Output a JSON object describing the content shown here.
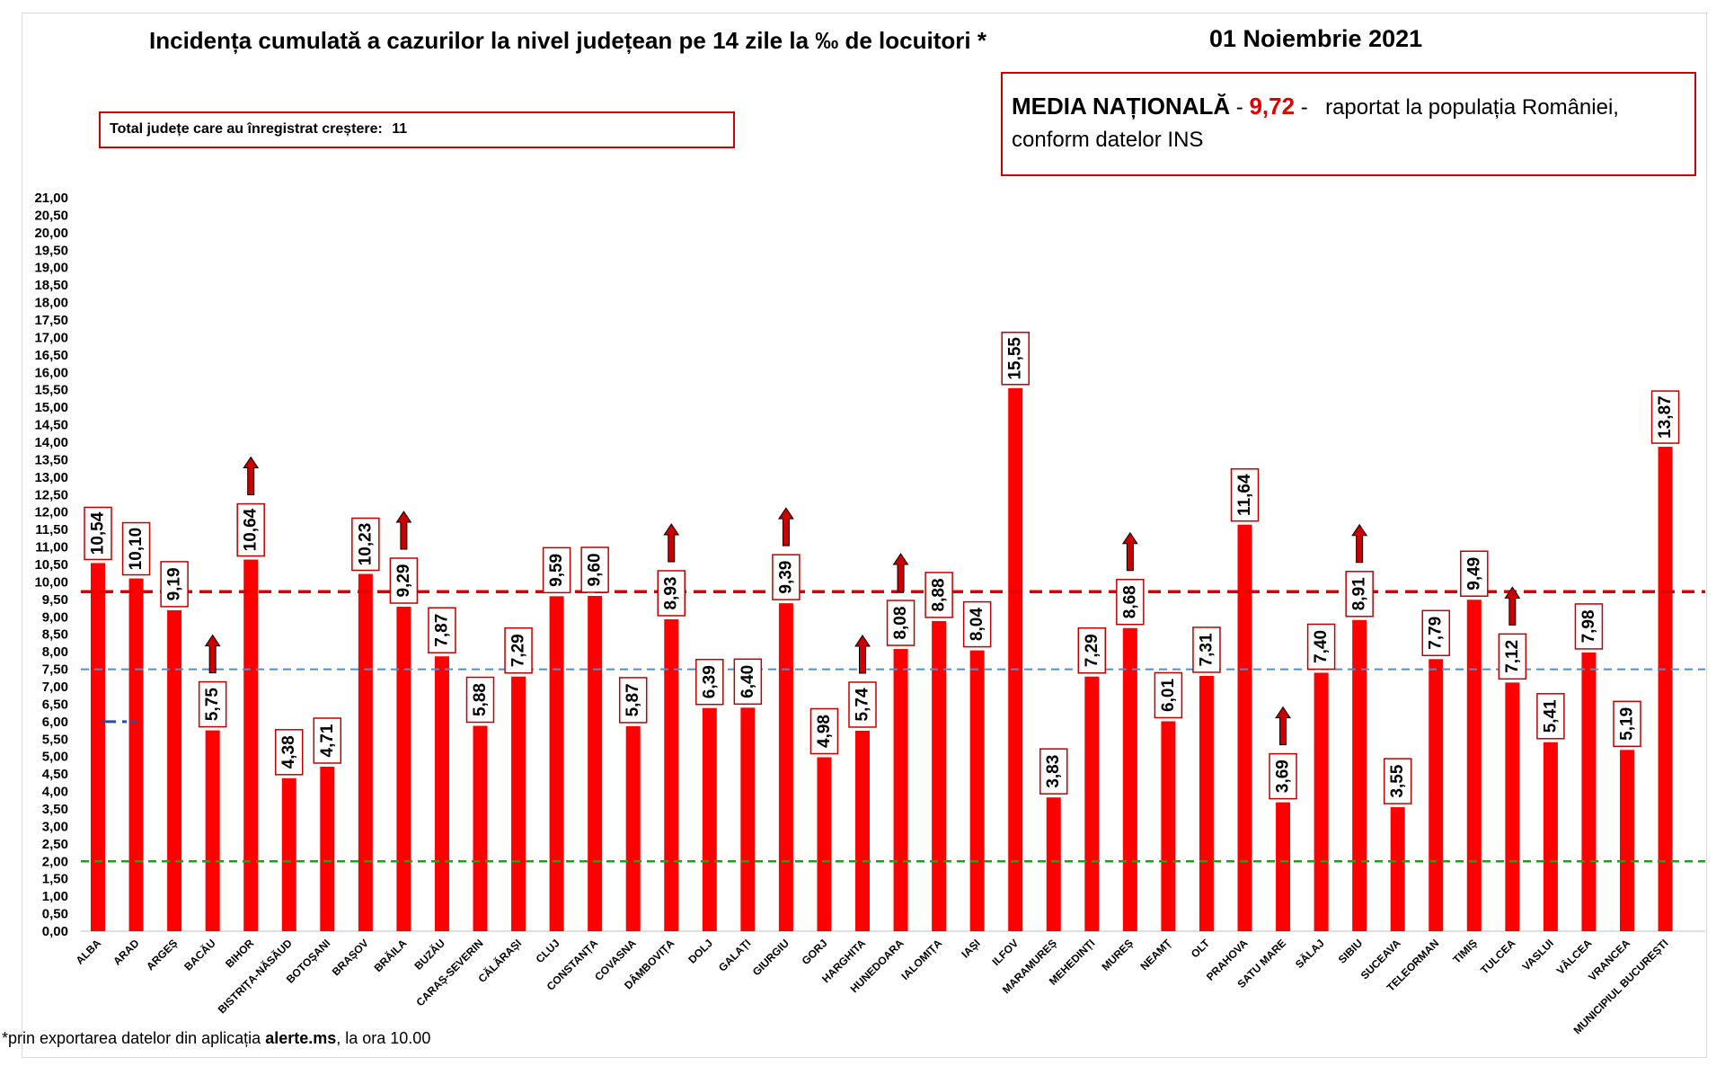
{
  "title": "Incidența cumulată a cazurilor la nivel județean pe 14 zile la ‰ de locuitori *",
  "date": "01 Noiembrie 2021",
  "total_box": {
    "label": "Total județe care au înregistrat creștere:",
    "value": "11"
  },
  "media_box": {
    "label": "MEDIA NAȚIONALĂ",
    "sep1": " - ",
    "value": "9,72",
    "sep2": " - ",
    "rest": "raportat la populația României, conform datelor INS"
  },
  "footnote": {
    "prefix": "*prin exportarea datelor din aplicația ",
    "source": "alerte.ms",
    "suffix": ", la ora 10.00"
  },
  "colors": {
    "bar": "#ff0000",
    "label_border": "#c00000",
    "arrow": "#cc0000",
    "line_national": "#e00000",
    "line_blue": "#4a90d9",
    "line_green": "#17a21a",
    "marker_blue": "#1f4fb0"
  },
  "chart_data": {
    "type": "bar",
    "ylim": [
      0,
      21
    ],
    "ytick_step": 0.5,
    "ytick_labels": [
      "0,00",
      "0,50",
      "1,00",
      "1,50",
      "2,00",
      "2,50",
      "3,00",
      "3,50",
      "4,00",
      "4,50",
      "5,00",
      "5,50",
      "6,00",
      "6,50",
      "7,00",
      "7,50",
      "8,00",
      "8,50",
      "9,00",
      "9,50",
      "10,00",
      "10,50",
      "11,00",
      "11,50",
      "12,00",
      "12,50",
      "13,00",
      "13,50",
      "14,00",
      "14,50",
      "15,00",
      "15,50",
      "16,00",
      "16,50",
      "17,00",
      "17,50",
      "18,00",
      "18,50",
      "19,00",
      "19,50",
      "20,00",
      "20,50",
      "21,00"
    ],
    "reference_lines": [
      {
        "value": 9.72,
        "style": "dashed",
        "color": "#e00000"
      },
      {
        "value": 7.5,
        "style": "dashed",
        "color": "#4a90d9"
      },
      {
        "value": 2.0,
        "style": "dashed",
        "color": "#17a21a"
      }
    ],
    "blue_marker": {
      "value": 6.0,
      "category": "ALBA"
    },
    "categories": [
      "ALBA",
      "ARAD",
      "ARGEȘ",
      "BACĂU",
      "BIHOR",
      "BISTRIȚA-NĂSĂUD",
      "BOTOȘANI",
      "BRAȘOV",
      "BRĂILA",
      "BUZĂU",
      "CARAȘ-SEVERIN",
      "CĂLĂRAȘI",
      "CLUJ",
      "CONSTANȚA",
      "COVASNA",
      "DÂMBOVIȚA",
      "DOLJ",
      "GALAȚI",
      "GIURGIU",
      "GORJ",
      "HARGHITA",
      "HUNEDOARA",
      "IALOMIȚA",
      "IAȘI",
      "ILFOV",
      "MARAMUREȘ",
      "MEHEDINȚI",
      "MUREȘ",
      "NEAMȚ",
      "OLT",
      "PRAHOVA",
      "SATU MARE",
      "SĂLAJ",
      "SIBIU",
      "SUCEAVA",
      "TELEORMAN",
      "TIMIȘ",
      "TULCEA",
      "VASLUI",
      "VÂLCEA",
      "VRANCEA",
      "MUNICIPIUL BUCUREȘTI"
    ],
    "values": [
      10.54,
      10.1,
      9.19,
      5.75,
      10.64,
      4.38,
      4.71,
      10.23,
      9.29,
      7.87,
      5.88,
      7.29,
      9.59,
      9.6,
      5.87,
      8.93,
      6.39,
      6.4,
      9.39,
      4.98,
      5.74,
      8.08,
      8.88,
      8.04,
      15.55,
      3.83,
      7.29,
      8.68,
      6.01,
      7.31,
      11.64,
      3.69,
      7.4,
      8.91,
      3.55,
      7.79,
      9.49,
      7.12,
      5.41,
      7.98,
      5.19,
      13.87
    ],
    "value_labels": [
      "10,54",
      "10,10",
      "9,19",
      "5,75",
      "10,64",
      "4,38",
      "4,71",
      "10,23",
      "9,29",
      "7,87",
      "5,88",
      "7,29",
      "9,59",
      "9,60",
      "5,87",
      "8,93",
      "6,39",
      "6,40",
      "9,39",
      "4,98",
      "5,74",
      "8,08",
      "8,88",
      "8,04",
      "15,55",
      "3,83",
      "7,29",
      "8,68",
      "6,01",
      "7,31",
      "11,64",
      "3,69",
      "7,40",
      "8,91",
      "3,55",
      "7,79",
      "9,49",
      "7,12",
      "5,41",
      "7,98",
      "5,19",
      "13,87"
    ],
    "increase_arrows": [
      "BACĂU",
      "BIHOR",
      "BRĂILA",
      "DÂMBOVIȚA",
      "GIURGIU",
      "HARGHITA",
      "HUNEDOARA",
      "MUREȘ",
      "SATU MARE",
      "SIBIU",
      "TULCEA"
    ]
  }
}
